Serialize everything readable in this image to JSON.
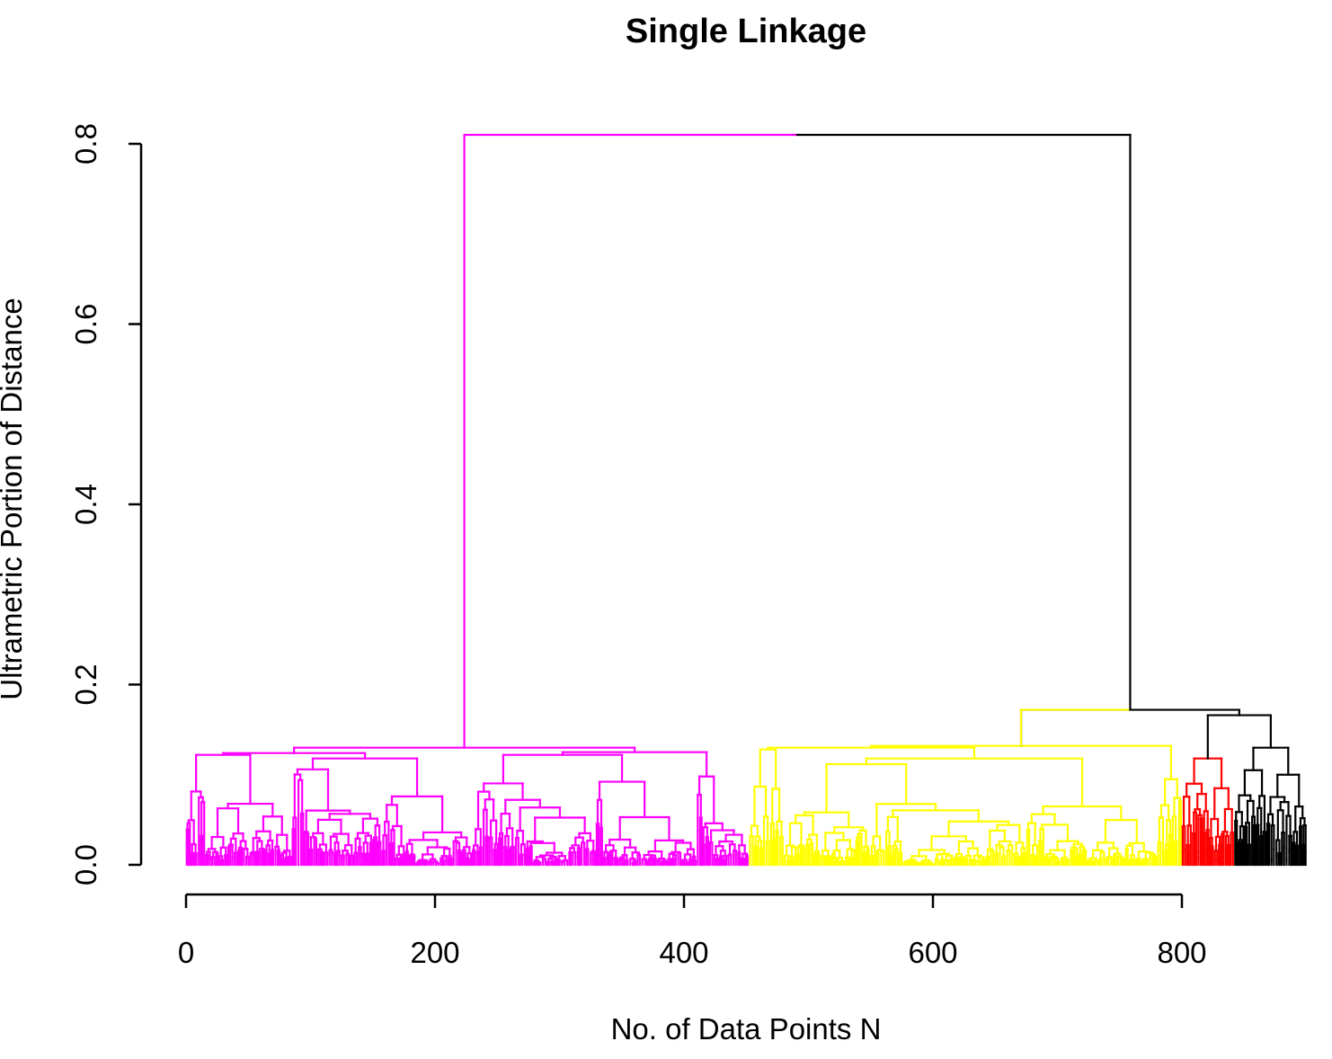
{
  "chart_data": {
    "type": "dendrogram",
    "title": "Single Linkage",
    "xlabel": "No. of Data Points N",
    "ylabel": "Ultrametric Portion of Distance",
    "xlim": [
      0,
      900
    ],
    "ylim": [
      0,
      0.82
    ],
    "x_ticks": [
      0,
      200,
      400,
      600,
      800
    ],
    "x_tick_labels": [
      "0",
      "200",
      "400",
      "600",
      "800"
    ],
    "y_ticks": [
      0.0,
      0.2,
      0.4,
      0.6,
      0.8
    ],
    "y_tick_labels": [
      "0.0",
      "0.2",
      "0.4",
      "0.6",
      "0.8"
    ],
    "grid": false,
    "colors": {
      "magenta": "#ff00ff",
      "yellow": "#ffff00",
      "red": "#ff0000",
      "black": "#000000"
    },
    "clusters": [
      {
        "color": "#ff00ff",
        "x_range": [
          0,
          452
        ],
        "merge_height": 0.13
      },
      {
        "color": "#ffff00",
        "x_range": [
          452,
          800
        ],
        "merge_height": 0.172
      },
      {
        "color": "#ff0000",
        "x_range": [
          800,
          842
        ],
        "merge_height": 0.166
      },
      {
        "color": "#000000",
        "x_range": [
          842,
          900
        ],
        "merge_height": 0.166
      }
    ],
    "merges": [
      {
        "height": 0.81,
        "x_left": 184,
        "x_right": 683
      },
      {
        "height": 0.172,
        "x_left": 542,
        "x_right": 825
      },
      {
        "height": 0.166,
        "x_left": 808,
        "x_right": 845
      },
      {
        "height": 0.13,
        "x_left": 49,
        "x_right": 318
      },
      {
        "height": 0.13,
        "x_left": 455,
        "x_right": 777
      }
    ]
  }
}
